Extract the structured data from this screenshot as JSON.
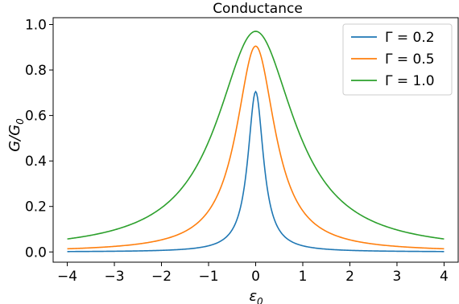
{
  "chart_data": {
    "type": "line",
    "title": "Conductance",
    "xlabel": "ε",
    "xlabel_sub": "0",
    "ylabel": "G/G",
    "ylabel_sub": "0",
    "xlim": [
      -4.3,
      4.3
    ],
    "ylim": [
      -0.045,
      1.03
    ],
    "xticks": [
      -4,
      -3,
      -2,
      -1,
      0,
      1,
      2,
      3,
      4
    ],
    "xtick_labels": [
      "−4",
      "−3",
      "−2",
      "−1",
      "0",
      "1",
      "2",
      "3",
      "4"
    ],
    "yticks": [
      0.0,
      0.2,
      0.4,
      0.6,
      0.8,
      1.0
    ],
    "ytick_labels": [
      "0.0",
      "0.2",
      "0.4",
      "0.6",
      "0.8",
      "1.0"
    ],
    "x_range": [
      -4,
      4
    ],
    "grid": false,
    "legend_position": "top-right",
    "series": [
      {
        "name": "Γ = 0.2",
        "color": "#1f77b4",
        "peak": 0.705,
        "gamma": 0.2,
        "values_at": {
          "-4": 0.005,
          "-2": 0.01,
          "-1": 0.03,
          "0": 0.705,
          "1": 0.03,
          "2": 0.01,
          "4": 0.005
        }
      },
      {
        "name": "Γ = 0.5",
        "color": "#ff7f0e",
        "peak": 0.905,
        "gamma": 0.5,
        "values_at": {
          "-4": 0.015,
          "-2": 0.06,
          "-1": 0.2,
          "0": 0.905,
          "1": 0.2,
          "2": 0.06,
          "4": 0.015
        }
      },
      {
        "name": "Γ = 1.0",
        "color": "#2ca02c",
        "peak": 0.97,
        "gamma": 1.0,
        "values_at": {
          "-4": 0.058,
          "-2": 0.2,
          "-1": 0.48,
          "0": 0.97,
          "1": 0.48,
          "2": 0.2,
          "4": 0.058
        }
      }
    ]
  }
}
